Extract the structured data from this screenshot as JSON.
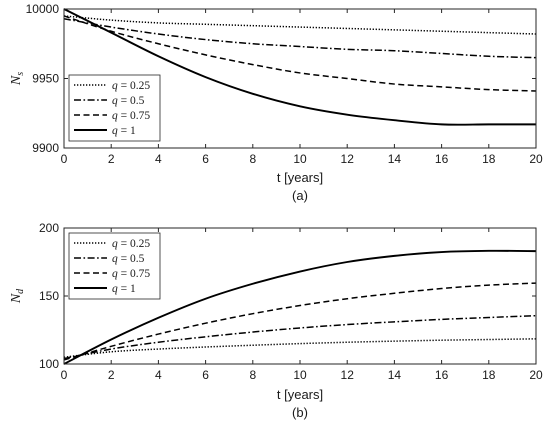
{
  "chart_data": [
    {
      "panel": "(a)",
      "type": "line",
      "caption": "(a)",
      "xlabel": "t [years]",
      "ylabel_main": "N",
      "ylabel_sub": "s",
      "xlim": [
        0,
        20
      ],
      "ylim": [
        9900,
        10000
      ],
      "xticks": [
        0,
        2,
        4,
        6,
        8,
        10,
        12,
        14,
        16,
        18,
        20
      ],
      "yticks": [
        9900,
        9950,
        10000
      ],
      "grid": false,
      "legend_position": "bottom-left",
      "series": [
        {
          "name": "q = 0.25",
          "q": "0.25",
          "style": "dotted",
          "x": [
            0,
            2,
            4,
            6,
            8,
            10,
            12,
            14,
            16,
            18,
            20
          ],
          "y": [
            9995,
            9992,
            9990,
            9989,
            9988,
            9987,
            9986,
            9985,
            9984,
            9983,
            9982
          ]
        },
        {
          "name": "q = 0.5",
          "q": "0.5",
          "style": "dashdot",
          "x": [
            0,
            2,
            4,
            6,
            8,
            10,
            12,
            14,
            16,
            18,
            20
          ],
          "y": [
            9993,
            9987,
            9982,
            9978,
            9975,
            9973,
            9971,
            9970,
            9968,
            9966,
            9965
          ]
        },
        {
          "name": "q = 0.75",
          "q": "0.75",
          "style": "dashed",
          "x": [
            0,
            2,
            4,
            6,
            8,
            10,
            12,
            14,
            16,
            18,
            20
          ],
          "y": [
            9995,
            9984,
            9975,
            9967,
            9960,
            9954,
            9950,
            9946,
            9944,
            9942,
            9941
          ]
        },
        {
          "name": "q = 1",
          "q": "1",
          "style": "solid",
          "x": [
            0,
            2,
            4,
            6,
            8,
            10,
            12,
            14,
            16,
            18,
            20
          ],
          "y": [
            10000,
            9983,
            9966,
            9951,
            9939,
            9930,
            9924,
            9920,
            9917,
            9917,
            9917
          ]
        }
      ]
    },
    {
      "panel": "(b)",
      "type": "line",
      "caption": "(b)",
      "xlabel": "t [years]",
      "ylabel_main": "N",
      "ylabel_sub": "d",
      "xlim": [
        0,
        20
      ],
      "ylim": [
        100,
        200
      ],
      "xticks": [
        0,
        2,
        4,
        6,
        8,
        10,
        12,
        14,
        16,
        18,
        20
      ],
      "yticks": [
        100,
        150,
        200
      ],
      "grid": false,
      "legend_position": "top-left",
      "series": [
        {
          "name": "q = 0.25",
          "q": "0.25",
          "style": "dotted",
          "x": [
            0,
            2,
            4,
            6,
            8,
            10,
            12,
            14,
            16,
            18,
            20
          ],
          "y": [
            105,
            109,
            111,
            112.5,
            113.8,
            115,
            116,
            116.8,
            117.5,
            118,
            118.5
          ]
        },
        {
          "name": "q = 0.5",
          "q": "0.5",
          "style": "dashdot",
          "x": [
            0,
            2,
            4,
            6,
            8,
            10,
            12,
            14,
            16,
            18,
            20
          ],
          "y": [
            104,
            111,
            116,
            120,
            123.5,
            126.5,
            129,
            131,
            132.8,
            134.2,
            135.5
          ]
        },
        {
          "name": "q = 0.75",
          "q": "0.75",
          "style": "dashed",
          "x": [
            0,
            2,
            4,
            6,
            8,
            10,
            12,
            14,
            16,
            18,
            20
          ],
          "y": [
            103,
            113,
            122,
            130,
            137,
            143,
            148,
            152,
            155.5,
            158,
            159.5
          ]
        },
        {
          "name": "q = 1",
          "q": "1",
          "style": "solid",
          "x": [
            0,
            2,
            4,
            6,
            8,
            10,
            12,
            14,
            16,
            18,
            20
          ],
          "y": [
            100,
            118,
            134,
            148,
            159,
            168,
            175,
            179.5,
            182.3,
            183.2,
            183
          ]
        }
      ]
    }
  ]
}
